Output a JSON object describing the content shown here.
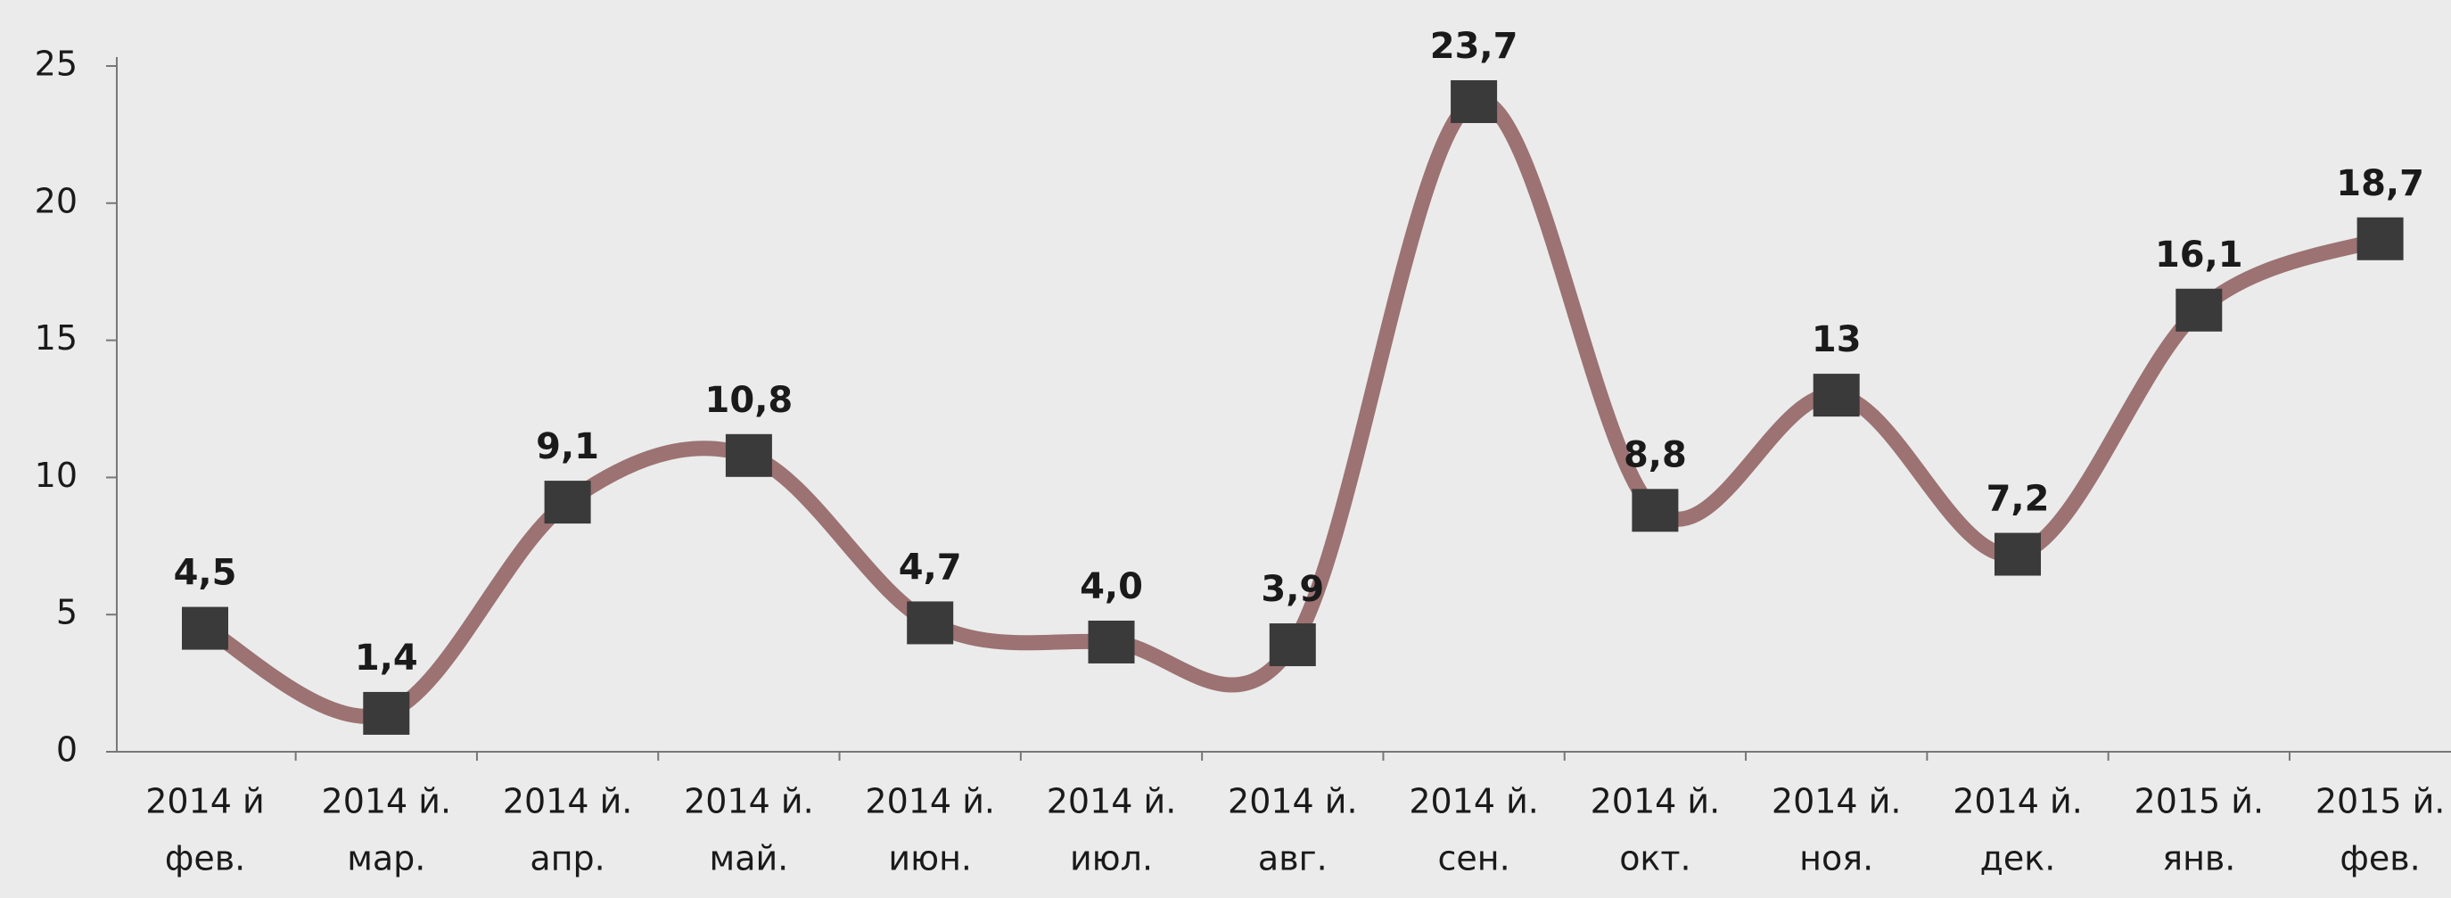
{
  "chart_data": {
    "type": "line",
    "categories": [
      [
        "2014 й",
        "фев."
      ],
      [
        "2014 й.",
        "мар."
      ],
      [
        "2014 й.",
        "апр."
      ],
      [
        "2014 й.",
        "май."
      ],
      [
        "2014 й.",
        "июн."
      ],
      [
        "2014 й.",
        "июл."
      ],
      [
        "2014 й.",
        "авг."
      ],
      [
        "2014 й.",
        "сен."
      ],
      [
        "2014 й.",
        "окт."
      ],
      [
        "2014 й.",
        "ноя."
      ],
      [
        "2014 й.",
        "дек."
      ],
      [
        "2015 й.",
        "янв."
      ],
      [
        "2015 й.",
        "фев."
      ]
    ],
    "values": [
      4.5,
      1.4,
      9.1,
      10.8,
      4.7,
      4.0,
      3.9,
      23.7,
      8.8,
      13,
      7.2,
      16.1,
      18.7
    ],
    "value_labels": [
      "4,5",
      "1,4",
      "9,1",
      "10,8",
      "4,7",
      "4,0",
      "3,9",
      "23,7",
      "8,8",
      "13",
      "7,2",
      "16,1",
      "18,7"
    ],
    "color": "#9c7272",
    "marker_color": "#3a3a3a",
    "ylim": [
      0,
      25
    ],
    "yticks": [
      0,
      5,
      10,
      15,
      20,
      25
    ]
  }
}
